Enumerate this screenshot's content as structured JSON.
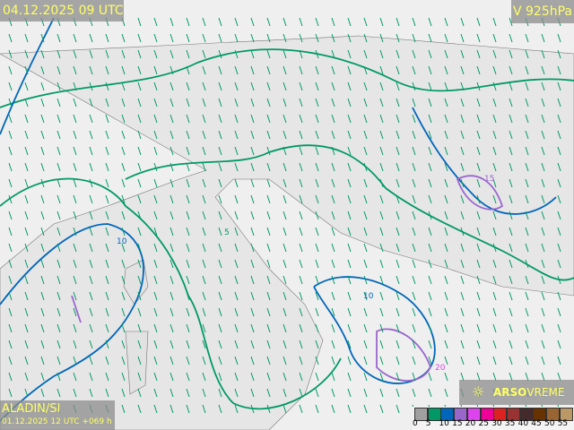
{
  "header": {
    "valid_time": "04.12.2025 09 UTC",
    "level": "V 925hPa"
  },
  "footer": {
    "model": "ALADIN/SI",
    "run": "01.12.2025 12 UTC +069 h"
  },
  "brand": {
    "name": "ARSO",
    "suffix": "VREME",
    "icon": "sun-logo-icon"
  },
  "legend": {
    "ticks": [
      "0",
      "5",
      "10",
      "15",
      "20",
      "25",
      "30",
      "35",
      "40",
      "45",
      "50",
      "55"
    ],
    "colors": [
      "#a0a0a0",
      "#009966",
      "#0066bb",
      "#9966cc",
      "#dd44ee",
      "#ee0099",
      "#dd2222",
      "#993333",
      "#442a2a",
      "#663300",
      "#996633",
      "#bb9966"
    ]
  },
  "contour_labels": [
    "5",
    "10",
    "15",
    "20"
  ]
}
